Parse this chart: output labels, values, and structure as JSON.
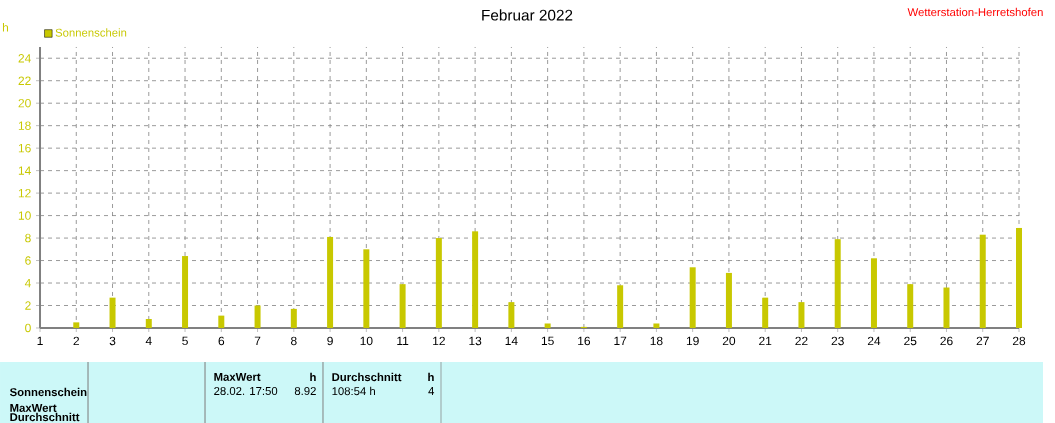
{
  "chart_data": {
    "type": "bar",
    "title": "Februar 2022",
    "ylabel": "h",
    "categories": [
      "1",
      "2",
      "3",
      "4",
      "5",
      "6",
      "7",
      "8",
      "9",
      "10",
      "11",
      "12",
      "13",
      "14",
      "15",
      "16",
      "17",
      "18",
      "19",
      "20",
      "21",
      "22",
      "23",
      "24",
      "25",
      "26",
      "27",
      "28"
    ],
    "series": [
      {
        "name": "Sonnenschein",
        "color": "#c8c800",
        "values": [
          0,
          0.5,
          2.7,
          0.8,
          6.4,
          1.1,
          2.0,
          1.7,
          8.1,
          7.0,
          3.9,
          8.0,
          8.6,
          2.3,
          0.4,
          0.1,
          3.8,
          0.4,
          5.4,
          4.9,
          2.7,
          2.3,
          7.9,
          6.2,
          3.9,
          3.6,
          8.3,
          8.9
        ]
      }
    ],
    "ylim": [
      0,
      25
    ],
    "yticks": [
      0,
      2,
      4,
      6,
      8,
      10,
      12,
      14,
      16,
      18,
      20,
      22,
      24
    ],
    "grid": true,
    "legend": "top left",
    "annotations": [
      "Wetterstation-Herretshofen",
      "Sonnenschein",
      "MaxWert",
      "Durchschnitt",
      "MaxWert",
      "h",
      "Durchschnitt",
      "h",
      "28.02. 17:50",
      "8.92",
      "108:54 h",
      "4"
    ]
  }
}
